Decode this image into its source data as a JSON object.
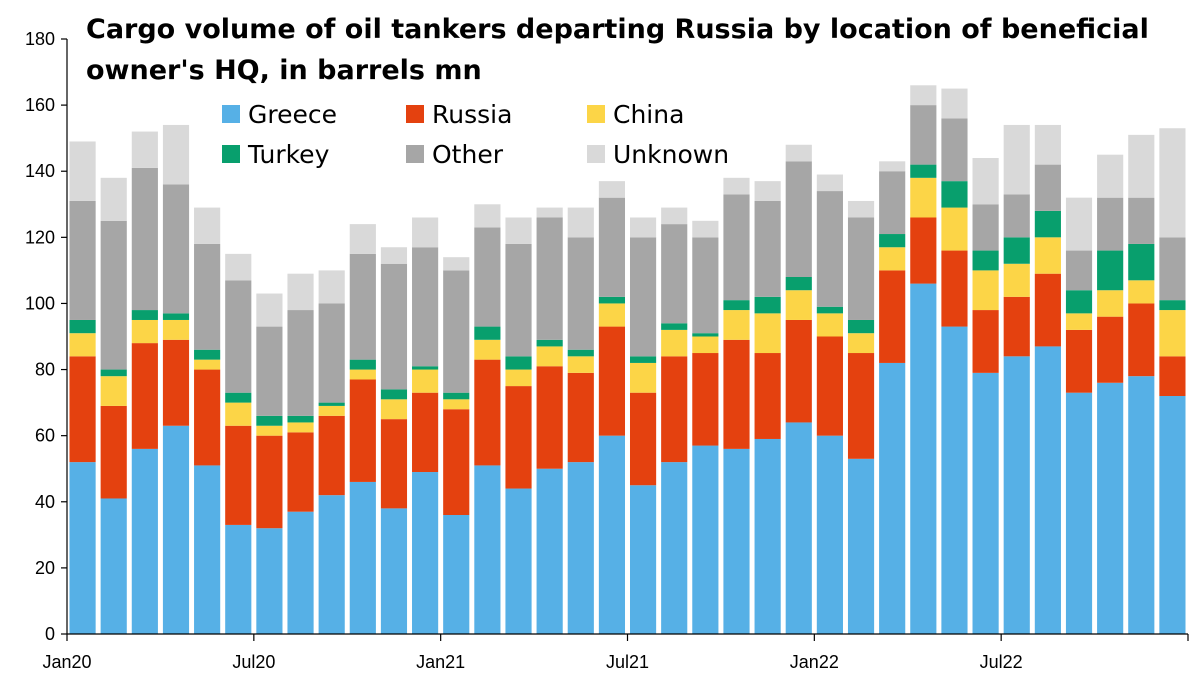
{
  "chart_data": {
    "type": "bar",
    "stacked": true,
    "title_lines": [
      "Cargo volume of oil tankers departing Russia by location of beneficial",
      "owner's HQ, in barrels mn"
    ],
    "xlabel": "",
    "ylabel": "",
    "ylim": [
      0,
      180
    ],
    "yticks": [
      0,
      20,
      40,
      60,
      80,
      100,
      120,
      140,
      160,
      180
    ],
    "grid": false,
    "legend_position": "top-center",
    "categories": [
      "Jan20",
      "Feb20",
      "Mar20",
      "Apr20",
      "May20",
      "Jun20",
      "Jul20",
      "Aug20",
      "Sep20",
      "Oct20",
      "Nov20",
      "Dec20",
      "Jan21",
      "Feb21",
      "Mar21",
      "Apr21",
      "May21",
      "Jun21",
      "Jul21",
      "Aug21",
      "Sep21",
      "Oct21",
      "Nov21",
      "Dec21",
      "Jan22",
      "Feb22",
      "Mar22",
      "Apr22",
      "May22",
      "Jun22",
      "Jul22",
      "Aug22",
      "Sep22",
      "Oct22",
      "Nov22",
      "Dec22"
    ],
    "x_tick_labels": [
      {
        "index": 0,
        "label": "Jan20"
      },
      {
        "index": 6,
        "label": "Jul20"
      },
      {
        "index": 12,
        "label": "Jan21"
      },
      {
        "index": 18,
        "label": "Jul21"
      },
      {
        "index": 24,
        "label": "Jan22"
      },
      {
        "index": 30,
        "label": "Jul22"
      }
    ],
    "series": [
      {
        "name": "Greece",
        "color": "#56b0e6",
        "values": [
          52,
          41,
          56,
          63,
          51,
          33,
          32,
          37,
          42,
          46,
          38,
          49,
          36,
          51,
          44,
          50,
          52,
          60,
          45,
          52,
          57,
          56,
          59,
          64,
          60,
          53,
          82,
          106,
          93,
          79,
          84,
          87,
          73,
          76,
          78,
          72
        ]
      },
      {
        "name": "Russia",
        "color": "#e4410f",
        "values": [
          32,
          28,
          32,
          26,
          29,
          30,
          28,
          24,
          24,
          31,
          27,
          24,
          32,
          32,
          31,
          31,
          27,
          33,
          28,
          32,
          28,
          33,
          26,
          31,
          30,
          32,
          28,
          20,
          23,
          19,
          18,
          22,
          19,
          20,
          22,
          12
        ]
      },
      {
        "name": "China",
        "color": "#fcd547",
        "values": [
          7,
          9,
          7,
          6,
          3,
          7,
          3,
          3,
          3,
          3,
          6,
          7,
          3,
          6,
          5,
          6,
          5,
          7,
          9,
          8,
          5,
          9,
          12,
          9,
          7,
          6,
          7,
          12,
          13,
          12,
          10,
          11,
          5,
          8,
          7,
          14
        ]
      },
      {
        "name": "Turkey",
        "color": "#089f6d",
        "values": [
          4,
          2,
          3,
          2,
          3,
          3,
          3,
          2,
          1,
          3,
          3,
          1,
          2,
          4,
          4,
          2,
          2,
          2,
          2,
          2,
          1,
          3,
          5,
          4,
          2,
          4,
          4,
          4,
          8,
          6,
          8,
          8,
          7,
          12,
          11,
          3
        ]
      },
      {
        "name": "Other",
        "color": "#a6a6a6",
        "values": [
          36,
          45,
          43,
          39,
          32,
          34,
          27,
          32,
          30,
          32,
          38,
          36,
          37,
          30,
          34,
          37,
          34,
          30,
          36,
          30,
          29,
          32,
          29,
          35,
          35,
          31,
          19,
          18,
          19,
          14,
          13,
          14,
          12,
          16,
          14,
          19
        ]
      },
      {
        "name": "Unknown",
        "color": "#d9d9d9",
        "values": [
          18,
          13,
          11,
          18,
          11,
          8,
          10,
          11,
          10,
          9,
          5,
          9,
          4,
          7,
          8,
          3,
          9,
          5,
          6,
          5,
          5,
          5,
          6,
          5,
          5,
          5,
          3,
          6,
          9,
          14,
          21,
          12,
          16,
          13,
          19,
          33
        ]
      }
    ]
  }
}
